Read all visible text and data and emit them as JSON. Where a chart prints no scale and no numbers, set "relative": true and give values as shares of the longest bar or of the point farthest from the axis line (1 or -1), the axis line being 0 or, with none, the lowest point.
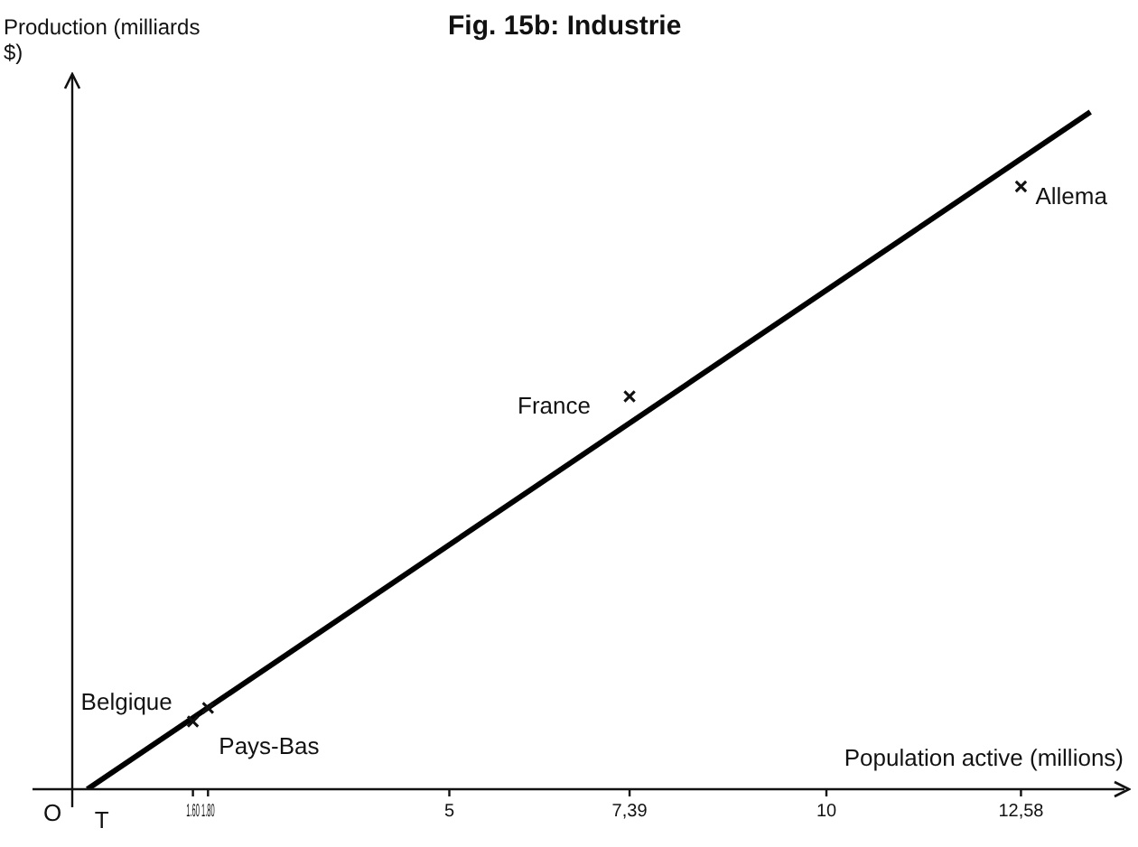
{
  "chart_data": {
    "type": "scatter",
    "title": "Fig. 15b: Industrie",
    "xlabel": "Population active  (millions)",
    "ylabel": "Production (milliards $)",
    "relative": true,
    "xlim": [
      0,
      14
    ],
    "xticks": [
      {
        "value": 1.6,
        "label": "1.60"
      },
      {
        "value": 1.8,
        "label": "1.80"
      },
      5,
      {
        "value": 7.39,
        "label": "7,39"
      },
      10,
      {
        "value": 12.58,
        "label": "12,58"
      }
    ],
    "series": [
      {
        "marker": "cross",
        "color": "#111111",
        "x": [
          1.6,
          1.8,
          7.39,
          12.58
        ],
        "values": [
          0.1,
          0.12,
          0.58,
          0.89
        ]
      },
      {
        "type": "line",
        "marker": "none",
        "color": "#000000",
        "x": [
          0.2,
          13.5
        ],
        "values": [
          0,
          1
        ]
      }
    ],
    "annotations": [
      {
        "text": "Belgique",
        "x": 1.6,
        "y": 0.1
      },
      {
        "text": "Pays-Bas",
        "x": 1.8,
        "y": 0.12
      },
      {
        "text": "France",
        "x": 7.39,
        "y": 0.58
      },
      {
        "text": "Allema",
        "x": 12.58,
        "y": 0.89
      },
      "O",
      {
        "text": "T",
        "x": 0.2,
        "y": 0
      }
    ],
    "line_style": "solid",
    "grid": false,
    "legend": false
  }
}
